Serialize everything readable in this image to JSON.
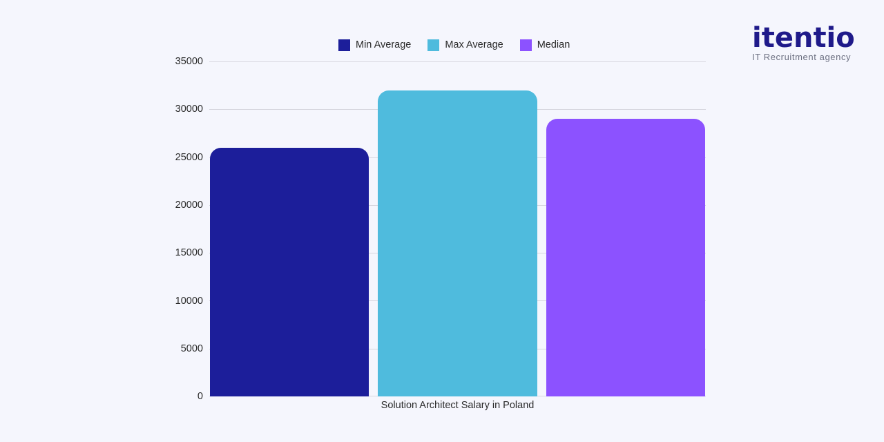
{
  "chart_data": {
    "type": "bar",
    "title": "",
    "xlabel": "Solution Architect Salary in Poland",
    "ylabel": "",
    "categories": [
      "Solution Architect Salary in Poland"
    ],
    "series": [
      {
        "name": "Min Average",
        "values": [
          26000
        ],
        "color": "#1c1e9a"
      },
      {
        "name": "Max Average",
        "values": [
          32000
        ],
        "color": "#4fbbdd"
      },
      {
        "name": "Median",
        "values": [
          29000
        ],
        "color": "#8c52ff"
      }
    ],
    "ylim": [
      0,
      35000
    ],
    "yticks": [
      0,
      5000,
      10000,
      15000,
      20000,
      25000,
      30000,
      35000
    ],
    "grid": true,
    "legend_position": "top"
  },
  "legend": {
    "items": [
      {
        "label": "Min Average",
        "color": "#1c1e9a"
      },
      {
        "label": "Max Average",
        "color": "#4fbbdd"
      },
      {
        "label": "Median",
        "color": "#8c52ff"
      }
    ]
  },
  "axis": {
    "yticks": [
      "35000",
      "30000",
      "25000",
      "20000",
      "15000",
      "10000",
      "5000",
      "0"
    ],
    "xlabel": "Solution Architect Salary in Poland"
  },
  "logo": {
    "word": "itentio",
    "tagline": "IT Recruitment agency",
    "primary_color": "#1f1a8a",
    "accent_color": "#4fbbdd"
  }
}
